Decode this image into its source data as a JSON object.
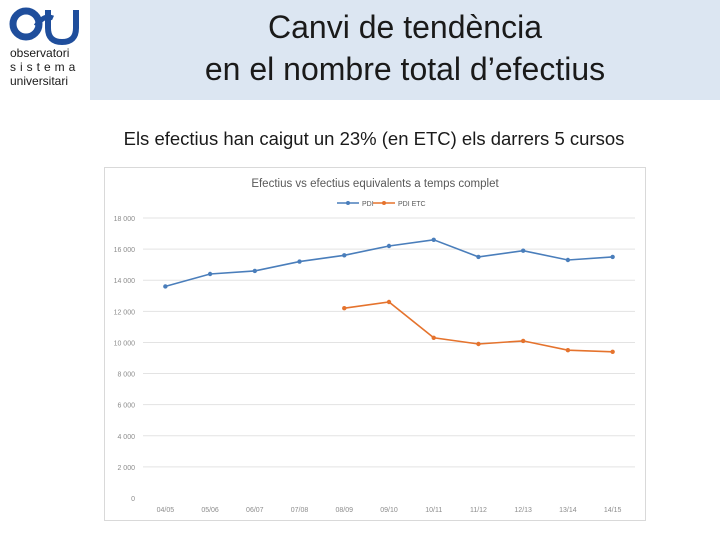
{
  "logo": {
    "name": "OSU",
    "line1": "observatori",
    "line2": "sistema",
    "line3": "universitari",
    "color": "#1f4e9c"
  },
  "header": {
    "title_line1": "Canvi de tendència",
    "title_line2": "en el nombre total d’efectius",
    "band_color": "#dce6f2"
  },
  "subtitle": "Els efectius han caigut un 23% (en ETC) els darrers 5 cursos",
  "chart_data": {
    "type": "line",
    "title": "Efectius vs efectius equivalents a temps complet",
    "xlabel": "",
    "ylabel": "",
    "categories": [
      "04/05",
      "05/06",
      "06/07",
      "07/08",
      "08/09",
      "09/10",
      "10/11",
      "11/12",
      "12/13",
      "13/14",
      "14/15"
    ],
    "y_tick_labels": [
      "0",
      "2 000",
      "4 000",
      "6 000",
      "8 000",
      "10 000",
      "12 000",
      "14 000",
      "16 000",
      "18 000"
    ],
    "ylim": [
      0,
      18000
    ],
    "grid": true,
    "legend_position": "top-center",
    "series": [
      {
        "name": "PDI",
        "color": "#4a7ebb",
        "values": [
          13600,
          14400,
          14600,
          15200,
          15600,
          16200,
          16600,
          15500,
          15900,
          15300,
          15500
        ]
      },
      {
        "name": "PDI ETC",
        "color": "#e5732d",
        "values": [
          null,
          null,
          null,
          null,
          12200,
          12600,
          10300,
          9900,
          10100,
          9500,
          9400
        ]
      }
    ]
  }
}
